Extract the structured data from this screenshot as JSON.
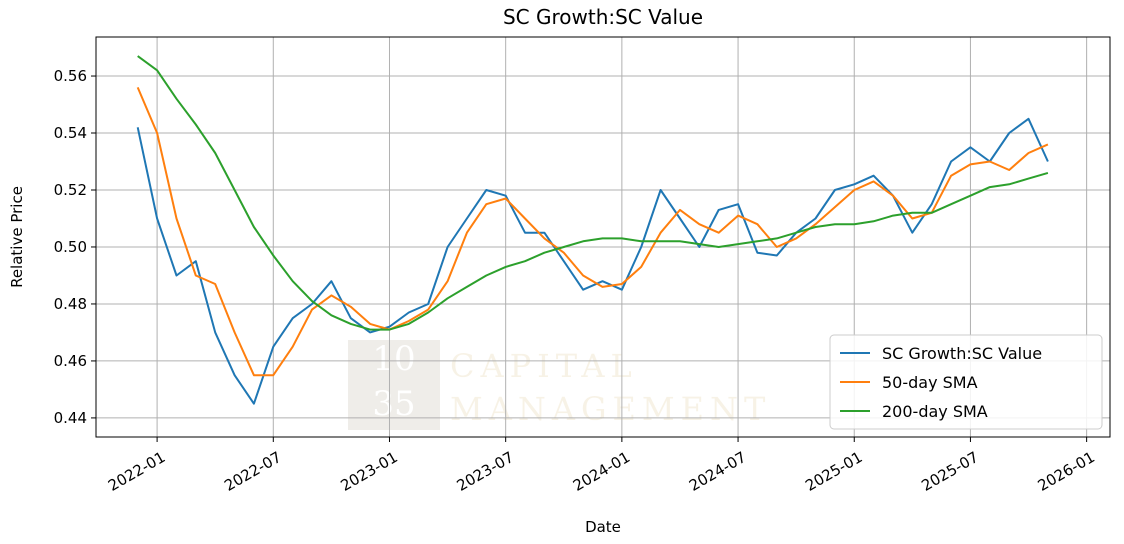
{
  "chart_data": {
    "type": "line",
    "title": "SC Growth:SC Value",
    "x_label": "Date",
    "y_label": "Relative Price",
    "watermark": [
      "10",
      "35",
      "CAPITAL",
      "MANAGEMENT"
    ],
    "x": [
      "2021-12",
      "2022-01",
      "2022-02",
      "2022-03",
      "2022-04",
      "2022-05",
      "2022-06",
      "2022-07",
      "2022-08",
      "2022-09",
      "2022-10",
      "2022-11",
      "2022-12",
      "2023-01",
      "2023-02",
      "2023-03",
      "2023-04",
      "2023-05",
      "2023-06",
      "2023-07",
      "2023-08",
      "2023-09",
      "2023-10",
      "2023-11",
      "2023-12",
      "2024-01",
      "2024-02",
      "2024-03",
      "2024-04",
      "2024-05",
      "2024-06",
      "2024-07",
      "2024-08",
      "2024-09",
      "2024-10",
      "2024-11",
      "2024-12",
      "2025-01",
      "2025-02",
      "2025-03",
      "2025-04",
      "2025-05",
      "2025-06",
      "2025-07",
      "2025-08",
      "2025-09",
      "2025-10",
      "2025-11"
    ],
    "series": [
      {
        "name": "SC Growth:SC Value",
        "color": "#1f77b4",
        "values": [
          0.542,
          0.51,
          0.49,
          0.495,
          0.47,
          0.455,
          0.445,
          0.465,
          0.475,
          0.48,
          0.488,
          0.475,
          0.47,
          0.472,
          0.477,
          0.48,
          0.5,
          0.51,
          0.52,
          0.518,
          0.505,
          0.505,
          0.495,
          0.485,
          0.488,
          0.485,
          0.5,
          0.52,
          0.51,
          0.5,
          0.513,
          0.515,
          0.498,
          0.497,
          0.505,
          0.51,
          0.52,
          0.522,
          0.525,
          0.518,
          0.505,
          0.515,
          0.53,
          0.535,
          0.53,
          0.54,
          0.545,
          0.53
        ]
      },
      {
        "name": "50-day SMA",
        "color": "#ff7f0e",
        "values": [
          0.556,
          0.54,
          0.51,
          0.49,
          0.487,
          0.47,
          0.455,
          0.455,
          0.465,
          0.478,
          0.483,
          0.479,
          0.473,
          0.471,
          0.474,
          0.478,
          0.488,
          0.505,
          0.515,
          0.517,
          0.51,
          0.503,
          0.498,
          0.49,
          0.486,
          0.487,
          0.493,
          0.505,
          0.513,
          0.508,
          0.505,
          0.511,
          0.508,
          0.5,
          0.503,
          0.508,
          0.514,
          0.52,
          0.523,
          0.518,
          0.51,
          0.512,
          0.525,
          0.529,
          0.53,
          0.527,
          0.533,
          0.536
        ]
      },
      {
        "name": "200-day SMA",
        "color": "#2ca02c",
        "values": [
          0.567,
          0.562,
          0.552,
          0.543,
          0.533,
          0.52,
          0.507,
          0.497,
          0.488,
          0.481,
          0.476,
          0.473,
          0.471,
          0.471,
          0.473,
          0.477,
          0.482,
          0.486,
          0.49,
          0.493,
          0.495,
          0.498,
          0.5,
          0.502,
          0.503,
          0.503,
          0.502,
          0.502,
          0.502,
          0.501,
          0.5,
          0.501,
          0.502,
          0.503,
          0.505,
          0.507,
          0.508,
          0.508,
          0.509,
          0.511,
          0.512,
          0.512,
          0.515,
          0.518,
          0.521,
          0.522,
          0.524,
          0.526
        ]
      }
    ],
    "xlim": [
      "2021-10",
      "2026-02"
    ],
    "xticks": [
      "2022-01",
      "2022-07",
      "2023-01",
      "2023-07",
      "2024-01",
      "2024-07",
      "2025-01",
      "2025-07",
      "2026-01"
    ],
    "ylim": [
      0.4333,
      0.5737
    ],
    "yticks": [
      0.44,
      0.46,
      0.48,
      {
        "value": 0.5,
        "label": "0.50"
      },
      0.52,
      0.54,
      0.56
    ],
    "grid": true,
    "legend": "lower right"
  }
}
